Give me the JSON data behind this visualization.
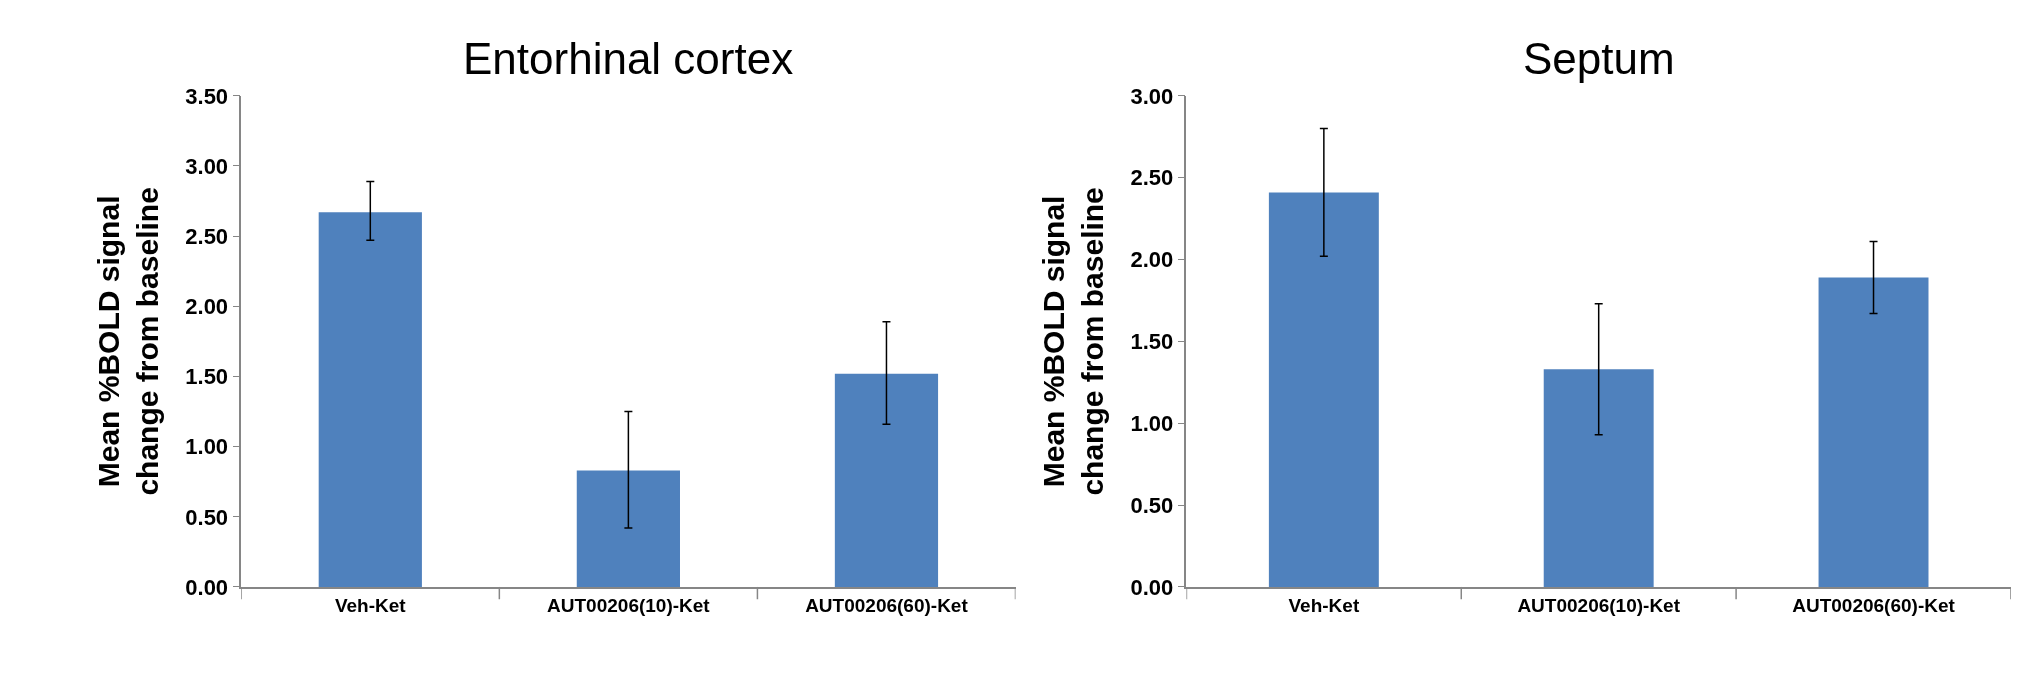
{
  "chart_data": [
    {
      "type": "bar",
      "title": "Entorhinal cortex",
      "ylabel": "Mean %BOLD signal\nchange from baseline",
      "categories": [
        "Veh-Ket",
        "AUT00206(10)-Ket",
        "AUT00206(60)-Ket"
      ],
      "values": [
        2.67,
        0.83,
        1.52
      ],
      "errors": [
        [
          2.47,
          2.89
        ],
        [
          0.42,
          1.25
        ],
        [
          1.16,
          1.89
        ]
      ],
      "color": "#4f81bd",
      "ylim": [
        0,
        3.5
      ],
      "yticks": [
        {
          "value": 0,
          "label": "0.00"
        },
        {
          "value": 0.5,
          "label": "0.50"
        },
        {
          "value": 1,
          "label": "1.00"
        },
        {
          "value": 1.5,
          "label": "1.50"
        },
        {
          "value": 2,
          "label": "2.00"
        },
        {
          "value": 2.5,
          "label": "2.50"
        },
        {
          "value": 3,
          "label": "3.00"
        },
        {
          "value": 3.5,
          "label": "3.50"
        }
      ]
    },
    {
      "type": "bar",
      "title": "Septum",
      "ylabel": "Mean %BOLD signal\nchange from baseline",
      "categories": [
        "Veh-Ket",
        "AUT00206(10)-Ket",
        "AUT00206(60)-Ket"
      ],
      "values": [
        2.41,
        1.33,
        1.89
      ],
      "errors": [
        [
          2.02,
          2.8
        ],
        [
          0.93,
          1.73
        ],
        [
          1.67,
          2.11
        ]
      ],
      "color": "#4f81bd",
      "ylim": [
        0,
        3
      ],
      "yticks": [
        {
          "value": 0,
          "label": "0.00"
        },
        {
          "value": 0.5,
          "label": "0.50"
        },
        {
          "value": 1,
          "label": "1.00"
        },
        {
          "value": 1.5,
          "label": "1.50"
        },
        {
          "value": 2,
          "label": "2.00"
        },
        {
          "value": 2.5,
          "label": "2.50"
        },
        {
          "value": 3,
          "label": "3.00"
        }
      ]
    }
  ]
}
